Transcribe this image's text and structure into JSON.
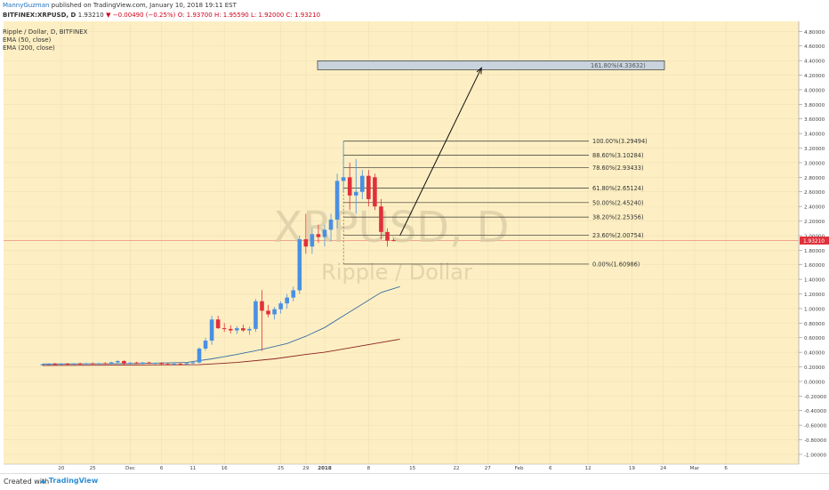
{
  "header": {
    "publisher": "MannyGuzman",
    "published_text": "published on TradingView.com, January 10, 2018 19:11 EST",
    "symbol": "BITFINEX:XRPUSD, D",
    "last_price": "1.93210",
    "change": "▼ −0.00490 (−0.25%)",
    "ohlc": "O: 1.93700  H: 1.95590  L: 1.92000  C: 1.93210"
  },
  "legend": {
    "title": "Ripple / Dollar, D, BITFINEX",
    "ema50": "EMA (50, close)",
    "ema200": "EMA (200, close)"
  },
  "watermark": {
    "symbol": "XRPUSD, D",
    "name": "Ripple / Dollar"
  },
  "footer": {
    "created_with": "Created with",
    "brand": "TradingView"
  },
  "colors": {
    "background": "#fdefc3",
    "up": "#4a90e2",
    "down": "#e0313b",
    "ema50": "#3a6ea5",
    "ema200": "#8b2222",
    "price_line": "#e85c5c"
  },
  "chart_data": {
    "type": "candlestick",
    "y_axis": {
      "range": [
        -1.15,
        4.9
      ],
      "ticks": [
        4.8,
        4.6,
        4.4,
        4.2,
        4.0,
        3.8,
        3.6,
        3.4,
        3.2,
        3.0,
        2.8,
        2.6,
        2.4,
        2.2,
        2.0,
        1.8,
        1.6,
        1.4,
        1.2,
        1.0,
        0.8,
        0.6,
        0.4,
        0.2,
        0.0,
        -0.2,
        -0.4,
        -0.6,
        -0.8,
        -1.0
      ],
      "tick_labels": [
        "4.80000",
        "4.60000",
        "4.40000",
        "4.20000",
        "4.00000",
        "3.80000",
        "3.60000",
        "3.40000",
        "3.20000",
        "3.00000",
        "2.80000",
        "2.60000",
        "2.40000",
        "2.20000",
        "2.00000",
        "1.80000",
        "1.60000",
        "1.40000",
        "1.20000",
        "1.00000",
        "0.80000",
        "0.60000",
        "0.40000",
        "0.20000",
        "0.00000",
        "-0.20000",
        "-0.40000",
        "-0.60000",
        "-0.80000",
        "-1.00000"
      ]
    },
    "x_axis": {
      "labels": [
        {
          "label": "20",
          "day": -42
        },
        {
          "label": "25",
          "day": -37
        },
        {
          "label": "Dec",
          "day": -31
        },
        {
          "label": "6",
          "day": -26
        },
        {
          "label": "11",
          "day": -21
        },
        {
          "label": "16",
          "day": -16
        },
        {
          "label": "25",
          "day": -7
        },
        {
          "label": "29",
          "day": -3
        },
        {
          "label": "2018",
          "day": 0
        },
        {
          "label": "8",
          "day": 7
        },
        {
          "label": "15",
          "day": 14
        },
        {
          "label": "22",
          "day": 21
        },
        {
          "label": "27",
          "day": 26
        },
        {
          "label": "Feb",
          "day": 31
        },
        {
          "label": "6",
          "day": 36
        },
        {
          "label": "12",
          "day": 42
        },
        {
          "label": "19",
          "day": 49
        },
        {
          "label": "24",
          "day": 54
        },
        {
          "label": "Mar",
          "day": 59
        },
        {
          "label": "6",
          "day": 64
        }
      ]
    },
    "current_price": 1.9321,
    "current_price_label": "1.93210",
    "candles": [
      {
        "day": -45,
        "o": 0.23,
        "h": 0.245,
        "l": 0.22,
        "c": 0.235
      },
      {
        "day": -44,
        "o": 0.235,
        "h": 0.25,
        "l": 0.225,
        "c": 0.24
      },
      {
        "day": -43,
        "o": 0.24,
        "h": 0.255,
        "l": 0.23,
        "c": 0.236
      },
      {
        "day": -42,
        "o": 0.236,
        "h": 0.25,
        "l": 0.225,
        "c": 0.243
      },
      {
        "day": -41,
        "o": 0.243,
        "h": 0.255,
        "l": 0.23,
        "c": 0.238
      },
      {
        "day": -40,
        "o": 0.238,
        "h": 0.25,
        "l": 0.226,
        "c": 0.245
      },
      {
        "day": -39,
        "o": 0.245,
        "h": 0.26,
        "l": 0.232,
        "c": 0.24
      },
      {
        "day": -38,
        "o": 0.24,
        "h": 0.255,
        "l": 0.228,
        "c": 0.248
      },
      {
        "day": -37,
        "o": 0.248,
        "h": 0.26,
        "l": 0.235,
        "c": 0.242
      },
      {
        "day": -36,
        "o": 0.242,
        "h": 0.256,
        "l": 0.23,
        "c": 0.25
      },
      {
        "day": -35,
        "o": 0.25,
        "h": 0.265,
        "l": 0.235,
        "c": 0.245
      },
      {
        "day": -34,
        "o": 0.245,
        "h": 0.27,
        "l": 0.235,
        "c": 0.262
      },
      {
        "day": -33,
        "o": 0.262,
        "h": 0.29,
        "l": 0.245,
        "c": 0.28
      },
      {
        "day": -32,
        "o": 0.28,
        "h": 0.29,
        "l": 0.225,
        "c": 0.245
      },
      {
        "day": -31,
        "o": 0.245,
        "h": 0.265,
        "l": 0.235,
        "c": 0.258
      },
      {
        "day": -30,
        "o": 0.258,
        "h": 0.27,
        "l": 0.24,
        "c": 0.25
      },
      {
        "day": -29,
        "o": 0.25,
        "h": 0.265,
        "l": 0.235,
        "c": 0.26
      },
      {
        "day": -28,
        "o": 0.26,
        "h": 0.27,
        "l": 0.24,
        "c": 0.248
      },
      {
        "day": -27,
        "o": 0.248,
        "h": 0.262,
        "l": 0.232,
        "c": 0.255
      },
      {
        "day": -26,
        "o": 0.255,
        "h": 0.265,
        "l": 0.23,
        "c": 0.24
      },
      {
        "day": -25,
        "o": 0.24,
        "h": 0.25,
        "l": 0.22,
        "c": 0.23
      },
      {
        "day": -24,
        "o": 0.23,
        "h": 0.25,
        "l": 0.22,
        "c": 0.243
      },
      {
        "day": -23,
        "o": 0.243,
        "h": 0.26,
        "l": 0.23,
        "c": 0.235
      },
      {
        "day": -22,
        "o": 0.235,
        "h": 0.26,
        "l": 0.228,
        "c": 0.25
      },
      {
        "day": -21,
        "o": 0.25,
        "h": 0.27,
        "l": 0.24,
        "c": 0.26
      },
      {
        "day": -20,
        "o": 0.26,
        "h": 0.47,
        "l": 0.25,
        "c": 0.45
      },
      {
        "day": -19,
        "o": 0.45,
        "h": 0.6,
        "l": 0.42,
        "c": 0.56
      },
      {
        "day": -18,
        "o": 0.56,
        "h": 0.9,
        "l": 0.5,
        "c": 0.85
      },
      {
        "day": -17,
        "o": 0.85,
        "h": 0.9,
        "l": 0.72,
        "c": 0.73
      },
      {
        "day": -16,
        "o": 0.73,
        "h": 0.8,
        "l": 0.68,
        "c": 0.72
      },
      {
        "day": -15,
        "o": 0.72,
        "h": 0.77,
        "l": 0.66,
        "c": 0.7
      },
      {
        "day": -14,
        "o": 0.7,
        "h": 0.76,
        "l": 0.65,
        "c": 0.73
      },
      {
        "day": -13,
        "o": 0.73,
        "h": 0.78,
        "l": 0.68,
        "c": 0.7
      },
      {
        "day": -12,
        "o": 0.7,
        "h": 0.75,
        "l": 0.64,
        "c": 0.72
      },
      {
        "day": -11,
        "o": 0.72,
        "h": 1.13,
        "l": 0.68,
        "c": 1.1
      },
      {
        "day": -10,
        "o": 1.1,
        "h": 1.25,
        "l": 0.42,
        "c": 0.97
      },
      {
        "day": -9,
        "o": 0.97,
        "h": 1.05,
        "l": 0.88,
        "c": 0.92
      },
      {
        "day": -8,
        "o": 0.92,
        "h": 1.02,
        "l": 0.85,
        "c": 0.99
      },
      {
        "day": -7,
        "o": 0.99,
        "h": 1.1,
        "l": 0.93,
        "c": 1.07
      },
      {
        "day": -6,
        "o": 1.07,
        "h": 1.2,
        "l": 1.0,
        "c": 1.15
      },
      {
        "day": -5,
        "o": 1.15,
        "h": 1.3,
        "l": 1.1,
        "c": 1.25
      },
      {
        "day": -4,
        "o": 1.25,
        "h": 2.0,
        "l": 1.2,
        "c": 1.95
      },
      {
        "day": -3,
        "o": 1.95,
        "h": 2.3,
        "l": 1.75,
        "c": 1.85
      },
      {
        "day": -2,
        "o": 1.85,
        "h": 2.1,
        "l": 1.75,
        "c": 2.02
      },
      {
        "day": -1,
        "o": 2.02,
        "h": 2.15,
        "l": 1.9,
        "c": 1.98
      },
      {
        "day": 0,
        "o": 1.98,
        "h": 2.15,
        "l": 1.85,
        "c": 2.08
      },
      {
        "day": 1,
        "o": 2.08,
        "h": 2.3,
        "l": 1.92,
        "c": 2.22
      },
      {
        "day": 2,
        "o": 2.22,
        "h": 2.85,
        "l": 2.1,
        "c": 2.75
      },
      {
        "day": 3,
        "o": 2.75,
        "h": 3.29,
        "l": 2.6,
        "c": 2.8
      },
      {
        "day": 4,
        "o": 2.8,
        "h": 3.0,
        "l": 2.35,
        "c": 2.55
      },
      {
        "day": 5,
        "o": 2.55,
        "h": 3.05,
        "l": 2.3,
        "c": 2.6
      },
      {
        "day": 6,
        "o": 2.6,
        "h": 2.9,
        "l": 2.5,
        "c": 2.82
      },
      {
        "day": 7,
        "o": 2.82,
        "h": 2.9,
        "l": 2.4,
        "c": 2.5
      },
      {
        "day": 8,
        "o": 2.8,
        "h": 2.85,
        "l": 2.35,
        "c": 2.4
      },
      {
        "day": 9,
        "o": 2.4,
        "h": 2.5,
        "l": 1.95,
        "c": 2.05
      },
      {
        "day": 10,
        "o": 2.05,
        "h": 2.1,
        "l": 1.85,
        "c": 1.93
      },
      {
        "day": 11,
        "o": 1.937,
        "h": 1.956,
        "l": 1.92,
        "c": 1.932
      }
    ],
    "ema50": [
      {
        "day": -45,
        "v": 0.24
      },
      {
        "day": -30,
        "v": 0.245
      },
      {
        "day": -22,
        "v": 0.26
      },
      {
        "day": -18,
        "v": 0.31
      },
      {
        "day": -14,
        "v": 0.37
      },
      {
        "day": -10,
        "v": 0.44
      },
      {
        "day": -6,
        "v": 0.52
      },
      {
        "day": -3,
        "v": 0.62
      },
      {
        "day": 0,
        "v": 0.74
      },
      {
        "day": 3,
        "v": 0.9
      },
      {
        "day": 6,
        "v": 1.06
      },
      {
        "day": 9,
        "v": 1.22
      },
      {
        "day": 12,
        "v": 1.3
      }
    ],
    "ema200": [
      {
        "day": -45,
        "v": 0.22
      },
      {
        "day": -20,
        "v": 0.23
      },
      {
        "day": -14,
        "v": 0.26
      },
      {
        "day": -8,
        "v": 0.31
      },
      {
        "day": -3,
        "v": 0.37
      },
      {
        "day": 0,
        "v": 0.4
      },
      {
        "day": 4,
        "v": 0.46
      },
      {
        "day": 8,
        "v": 0.52
      },
      {
        "day": 12,
        "v": 0.58
      }
    ],
    "fibonacci": {
      "start_day": 3,
      "levels": [
        {
          "label": "100.00%(3.29494)",
          "price": 3.29494
        },
        {
          "label": "88.60%(3.10284)",
          "price": 3.10284
        },
        {
          "label": "78.60%(2.93433)",
          "price": 2.93433
        },
        {
          "label": "61.80%(2.65124)",
          "price": 2.65124
        },
        {
          "label": "50.00%(2.45240)",
          "price": 2.4524
        },
        {
          "label": "38.20%(2.25356)",
          "price": 2.25356
        },
        {
          "label": "23.60%(2.00754)",
          "price": 2.00754
        },
        {
          "label": "0.00%(1.60986)",
          "price": 1.60986
        }
      ]
    },
    "target": {
      "label": "161.80%(4.33632)",
      "price": 4.33632
    },
    "arrow": {
      "from_day": 12,
      "from_price": 2.0,
      "to_day": 25,
      "to_price": 4.3
    }
  }
}
